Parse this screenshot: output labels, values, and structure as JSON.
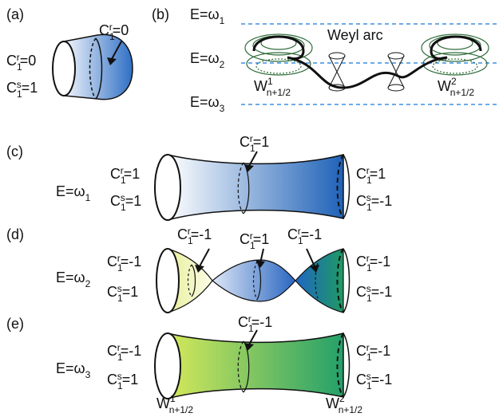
{
  "panels": {
    "a": {
      "tag": "(a)",
      "left_cr": "0",
      "left_cs": "1",
      "arrow_cr": "0"
    },
    "b": {
      "tag": "(b)",
      "e1": "E=ω",
      "e2": "E=ω",
      "e3": "E=ω",
      "weyl_arc": "Weyl arc",
      "w1_sup": "1",
      "w2_sup": "2",
      "w_sub": "n+1/2"
    },
    "c": {
      "tag": "(c)",
      "energy": "E=ω",
      "energy_sub": "1",
      "left_cr": "1",
      "left_cs": "1",
      "mid_cr": "1",
      "right_cr": "1",
      "right_cs": "-1"
    },
    "d": {
      "tag": "(d)",
      "energy": "E=ω",
      "energy_sub": "2",
      "left_cr": "-1",
      "left_cs": "1",
      "arrow1_cr": "-1",
      "arrow2_cr": "1",
      "arrow3_cr": "-1",
      "right_cr": "-1",
      "right_cs": "-1"
    },
    "e": {
      "tag": "(e)",
      "energy": "E=ω",
      "energy_sub": "3",
      "left_cr": "-1",
      "left_cs": "1",
      "mid_cr": "-1",
      "right_cr": "-1",
      "right_cs": "-1",
      "w1_sup": "1",
      "w2_sup": "2",
      "w_sub": "n+1/2"
    }
  },
  "colors": {
    "blue_light": "#e9eff9",
    "blue_dark": "#1f5fb5",
    "yellow": "#e9f0a0",
    "green": "#1f9a63",
    "dash_line": "#3b8fe0",
    "cone_green": "#2f6b3a"
  }
}
